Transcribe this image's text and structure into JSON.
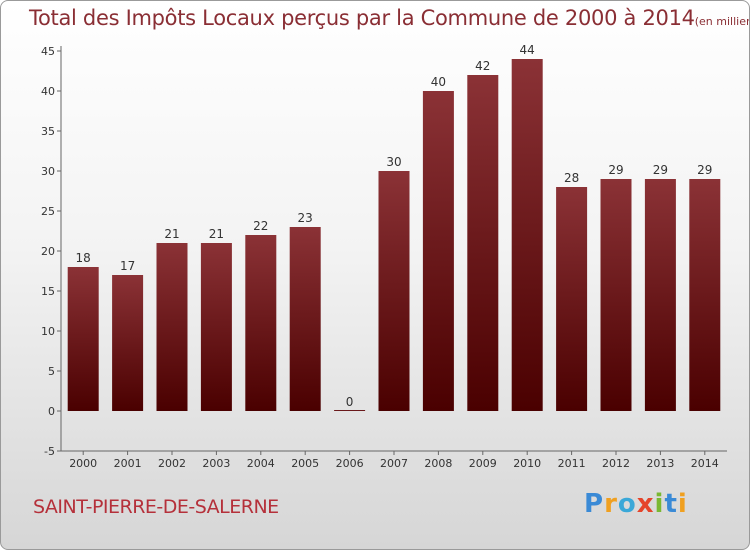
{
  "title": "Total des Impôts Locaux perçus par la Commune de 2000 à 2014",
  "unit": "(en milliers d'€)",
  "commune": "SAINT-PIERRE-DE-SALERNE",
  "logo": [
    "P",
    "r",
    "o",
    "x",
    "i",
    "t",
    "i"
  ],
  "colors": {
    "bar_top": "#8b3236",
    "bar_bottom": "#4a0000",
    "title": "#8a2e34",
    "commune": "#b5303a"
  },
  "chart_data": {
    "type": "bar",
    "title": "Total des Impôts Locaux perçus par la Commune de 2000 à 2014",
    "xlabel": "",
    "ylabel": "",
    "categories": [
      "2000",
      "2001",
      "2002",
      "2003",
      "2004",
      "2005",
      "2006",
      "2007",
      "2008",
      "2009",
      "2010",
      "2011",
      "2012",
      "2013",
      "2014"
    ],
    "values": [
      18,
      17,
      21,
      21,
      22,
      23,
      0,
      30,
      40,
      42,
      44,
      28,
      29,
      29,
      29
    ],
    "data_labels": [
      "18",
      "17",
      "21",
      "21",
      "22",
      "23",
      "0",
      "30",
      "40",
      "42",
      "44",
      "28",
      "29",
      "29",
      "29"
    ],
    "yticks": [
      "-5",
      "0",
      "5",
      "10",
      "15",
      "20",
      "25",
      "30",
      "35",
      "40",
      "45"
    ],
    "ylim": [
      -5,
      45
    ],
    "grid": false,
    "legend": "none"
  }
}
